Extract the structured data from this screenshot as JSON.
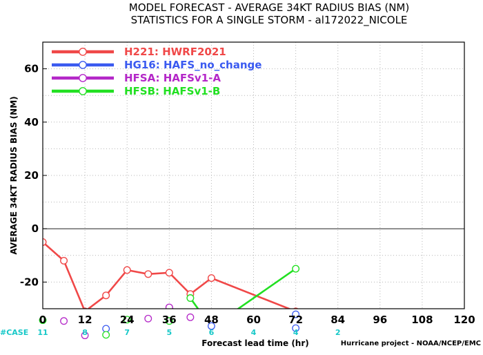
{
  "title_line1": "MODEL FORECAST - AVERAGE 34KT RADIUS BIAS (NM)",
  "title_line2": "STATISTICS FOR A SINGLE STORM - al172022_NICOLE",
  "credit": "Hurricane project - NOAA/NCEP/EMC",
  "case_label": "#CASE",
  "chart_data": {
    "type": "line",
    "xlabel": "Forecast lead time (hr)",
    "ylabel": "AVERAGE 34KT RADIUS BIAS (NM)",
    "xlim": [
      0,
      120
    ],
    "ylim": [
      -30,
      70
    ],
    "xticks": [
      0,
      12,
      24,
      36,
      48,
      60,
      72,
      84,
      96,
      108,
      120
    ],
    "yticks": [
      -20,
      0,
      20,
      40,
      60
    ],
    "grid": true,
    "zero_line": true,
    "legend_position": "top-left",
    "series": [
      {
        "name": "H221: HWRF2021",
        "color": "#f04848",
        "x": [
          0,
          6,
          12,
          18,
          24,
          30,
          36,
          42,
          48,
          72
        ],
        "y": [
          -5,
          -12,
          -31,
          -25,
          -15.5,
          -17,
          -16.5,
          -24.5,
          -18.5,
          -31
        ]
      },
      {
        "name": "HG16: HAFS_no_change",
        "color": "#3a5af0",
        "x": [],
        "y": []
      },
      {
        "name": "HFSA: HAFSv1-A",
        "color": "#b427c8",
        "x": [
          36,
          42
        ],
        "y": [
          -29.5,
          -33
        ]
      },
      {
        "name": "HFSB: HAFSv1-B",
        "color": "#22e022",
        "x": [
          42,
          48,
          72
        ],
        "y": [
          -26,
          -37,
          -15
        ]
      }
    ],
    "case_counts": [
      {
        "x": 0,
        "label": "11"
      },
      {
        "x": 12,
        "label": "8"
      },
      {
        "x": 24,
        "label": "7"
      },
      {
        "x": 36,
        "label": "5"
      },
      {
        "x": 48,
        "label": "6"
      },
      {
        "x": 60,
        "label": "4"
      },
      {
        "x": 72,
        "label": "4"
      },
      {
        "x": 84,
        "label": "2"
      }
    ],
    "below_axis_markers": [
      {
        "series": 3,
        "x": 0,
        "y": -34.3
      },
      {
        "series": 2,
        "x": 6,
        "y": -34.6
      },
      {
        "series": 2,
        "x": 12,
        "y": -40
      },
      {
        "series": 1,
        "x": 18,
        "y": -37.5
      },
      {
        "series": 3,
        "x": 18,
        "y": -39.8
      },
      {
        "series": 2,
        "x": 30,
        "y": -33.7
      },
      {
        "series": 3,
        "x": 24,
        "y": -34.1
      },
      {
        "series": 3,
        "x": 36,
        "y": -34.6
      },
      {
        "series": 2,
        "x": 42,
        "y": -33.2
      },
      {
        "series": 1,
        "x": 48,
        "y": -36.5
      },
      {
        "series": 1,
        "x": 72,
        "y": -37.3
      },
      {
        "series": 1,
        "x": 72,
        "y": -32.1
      }
    ]
  }
}
